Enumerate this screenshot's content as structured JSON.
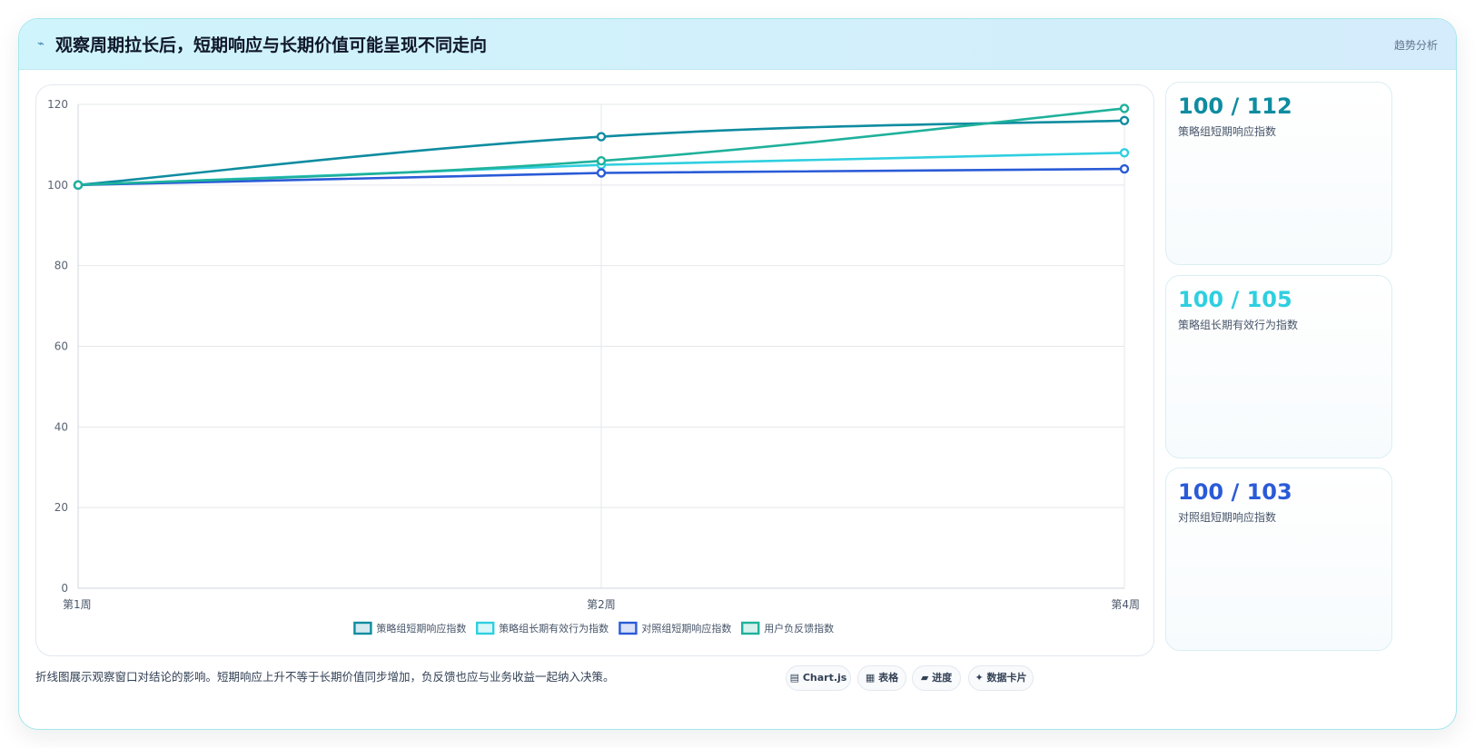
{
  "header": {
    "icon": "⌁",
    "title": "观察周期拉长后，短期响应与长期价值可能呈现不同走向",
    "tag": "趋势分析"
  },
  "chart_data": {
    "type": "line",
    "title": "",
    "xlabel": "",
    "ylabel": "",
    "x": [
      "第1周",
      "第2周",
      "第4周"
    ],
    "ylim": [
      0,
      120
    ],
    "yticks": [
      0,
      20,
      40,
      60,
      80,
      100,
      120
    ],
    "grid": true,
    "legend_position": "bottom",
    "series": [
      {
        "name": "策略组短期响应指数",
        "values": [
          100,
          112,
          116
        ],
        "color": "#0e8ca0"
      },
      {
        "name": "策略组长期有效行为指数",
        "values": [
          100,
          105,
          108
        ],
        "color": "#2fcfe0"
      },
      {
        "name": "对照组短期响应指数",
        "values": [
          100,
          103,
          104
        ],
        "color": "#2a5bd7"
      },
      {
        "name": "用户负反馈指数",
        "values": [
          100,
          106,
          119
        ],
        "color": "#1fb19b"
      }
    ]
  },
  "stats": [
    {
      "value": "100 / 112",
      "label": "策略组短期响应指数",
      "color": "#0e8ca0"
    },
    {
      "value": "100 / 105",
      "label": "策略组长期有效行为指数",
      "color": "#2fcfe0"
    },
    {
      "value": "100 / 103",
      "label": "对照组短期响应指数",
      "color": "#2a5bd7"
    }
  ],
  "footer": {
    "caption": "折线图展示观察窗口对结论的影响。短期响应上升不等于长期价值同步增加，负反馈也应与业务收益一起纳入决策。",
    "chips": [
      "▤ Chart.js",
      "▦ 表格",
      "▰ 进度",
      "✦ 数据卡片"
    ]
  }
}
